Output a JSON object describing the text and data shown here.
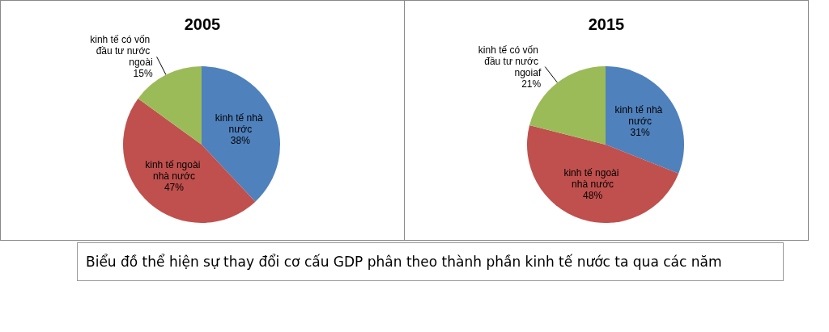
{
  "chart_data": [
    {
      "type": "pie",
      "title": "2005",
      "categories": [
        "kinh tế nhà nước",
        "kinh tế ngoài nhà nước",
        "kinh tế có vốn đầu tư nước ngoài"
      ],
      "values": [
        38,
        47,
        15
      ],
      "value_labels": [
        "38%",
        "47%",
        "15%"
      ],
      "colors": [
        "#4f81bd",
        "#c0504d",
        "#9bbb59"
      ],
      "legend": false,
      "annotations": [
        "Biểu đồ thể hiện sự thay đổi cơ cấu GDP phân theo thành phần kinh tế nước ta qua các năm"
      ]
    },
    {
      "type": "pie",
      "title": "2015",
      "categories": [
        "kinh tế nhà nước",
        "kinh tế ngoài nhà nước",
        "kinh tế có vốn đầu tư nước ngoiaf"
      ],
      "values": [
        31,
        48,
        21
      ],
      "value_labels": [
        "31%",
        "48%",
        "21%"
      ],
      "colors": [
        "#4f81bd",
        "#c0504d",
        "#9bbb59"
      ],
      "legend": false
    }
  ]
}
